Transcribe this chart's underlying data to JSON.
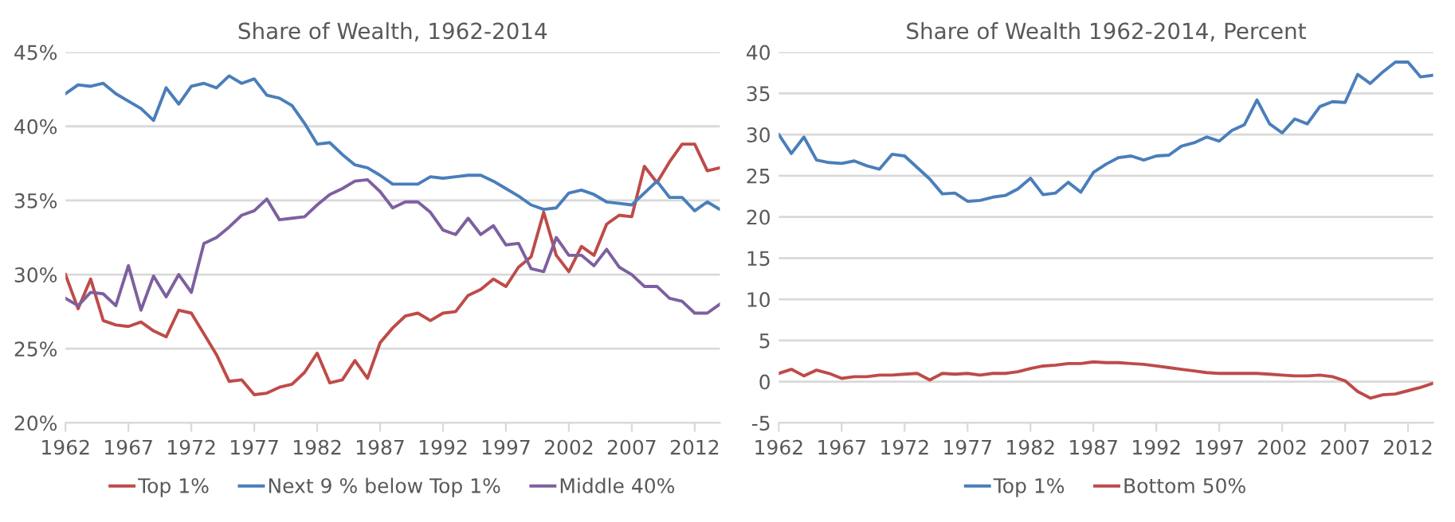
{
  "chart_data": [
    {
      "type": "line",
      "title": "Share of Wealth, 1962-2014",
      "x": [
        1962,
        1963,
        1964,
        1965,
        1966,
        1967,
        1968,
        1969,
        1970,
        1971,
        1972,
        1973,
        1974,
        1975,
        1976,
        1977,
        1978,
        1979,
        1980,
        1981,
        1982,
        1983,
        1984,
        1985,
        1986,
        1987,
        1988,
        1989,
        1990,
        1991,
        1992,
        1993,
        1994,
        1995,
        1996,
        1997,
        1998,
        1999,
        2000,
        2001,
        2002,
        2003,
        2004,
        2005,
        2006,
        2007,
        2008,
        2009,
        2010,
        2011,
        2012,
        2013,
        2014
      ],
      "series": [
        {
          "name": "Top 1%",
          "color": "#be4b48",
          "values": [
            30.0,
            27.7,
            29.7,
            26.9,
            26.6,
            26.5,
            26.8,
            26.2,
            25.8,
            27.6,
            27.4,
            26.0,
            24.6,
            22.8,
            22.9,
            21.9,
            22.0,
            22.4,
            22.6,
            23.4,
            24.7,
            22.7,
            22.9,
            24.2,
            23.0,
            25.4,
            26.4,
            27.2,
            27.4,
            26.9,
            27.4,
            27.5,
            28.6,
            29.0,
            29.7,
            29.2,
            30.5,
            31.2,
            34.2,
            31.3,
            30.2,
            31.9,
            31.3,
            33.4,
            34.0,
            33.9,
            37.3,
            36.2,
            37.6,
            38.8,
            38.8,
            37.0,
            37.2
          ]
        },
        {
          "name": "Next 9 % below Top 1%",
          "color": "#4a7ebb",
          "values": [
            42.2,
            42.8,
            42.7,
            42.9,
            42.2,
            41.7,
            41.2,
            40.4,
            42.6,
            41.5,
            42.7,
            42.9,
            42.6,
            43.4,
            42.9,
            43.2,
            42.1,
            41.9,
            41.4,
            40.2,
            38.8,
            38.9,
            38.1,
            37.4,
            37.2,
            36.7,
            36.1,
            36.1,
            36.1,
            36.6,
            36.5,
            36.6,
            36.7,
            36.7,
            36.3,
            35.8,
            35.3,
            34.7,
            34.4,
            34.5,
            35.5,
            35.7,
            35.4,
            34.9,
            34.8,
            34.7,
            35.5,
            36.3,
            35.2,
            35.2,
            34.3,
            34.9,
            34.4
          ]
        },
        {
          "name": "Middle 40%",
          "color": "#7d60a0",
          "values": [
            28.4,
            27.9,
            28.8,
            28.7,
            27.9,
            30.6,
            27.6,
            29.9,
            28.5,
            30.0,
            28.8,
            32.1,
            32.5,
            33.2,
            34.0,
            34.3,
            35.1,
            33.7,
            33.8,
            33.9,
            34.7,
            35.4,
            35.8,
            36.3,
            36.4,
            35.6,
            34.5,
            34.9,
            34.9,
            34.2,
            33.0,
            32.7,
            33.8,
            32.7,
            33.3,
            32.0,
            32.1,
            30.4,
            30.2,
            32.5,
            31.3,
            31.3,
            30.6,
            31.7,
            30.5,
            30.0,
            29.2,
            29.2,
            28.4,
            28.2,
            27.4,
            27.4,
            28.0
          ]
        }
      ],
      "xlim": [
        1962,
        2014
      ],
      "xticks": [
        1962,
        1967,
        1972,
        1977,
        1982,
        1987,
        1992,
        1997,
        2002,
        2007,
        2012
      ],
      "ylim": [
        20,
        45
      ],
      "yticks": [
        {
          "value": 20,
          "label": "20%"
        },
        {
          "value": 25,
          "label": "25%"
        },
        {
          "value": 30,
          "label": "30%"
        },
        {
          "value": 35,
          "label": "35%"
        },
        {
          "value": 40,
          "label": "40%"
        },
        {
          "value": 45,
          "label": "45%"
        }
      ],
      "grid": "y",
      "legend": "bottom",
      "marker": "none",
      "line_style": "solid"
    },
    {
      "type": "line",
      "title": "Share of Wealth 1962-2014, Percent",
      "x": [
        1962,
        1963,
        1964,
        1965,
        1966,
        1967,
        1968,
        1969,
        1970,
        1971,
        1972,
        1973,
        1974,
        1975,
        1976,
        1977,
        1978,
        1979,
        1980,
        1981,
        1982,
        1983,
        1984,
        1985,
        1986,
        1987,
        1988,
        1989,
        1990,
        1991,
        1992,
        1993,
        1994,
        1995,
        1996,
        1997,
        1998,
        1999,
        2000,
        2001,
        2002,
        2003,
        2004,
        2005,
        2006,
        2007,
        2008,
        2009,
        2010,
        2011,
        2012,
        2013,
        2014
      ],
      "series": [
        {
          "name": "Top 1%",
          "color": "#4a7ebb",
          "values": [
            30.0,
            27.7,
            29.7,
            26.9,
            26.6,
            26.5,
            26.8,
            26.2,
            25.8,
            27.6,
            27.4,
            26.0,
            24.6,
            22.8,
            22.9,
            21.9,
            22.0,
            22.4,
            22.6,
            23.4,
            24.7,
            22.7,
            22.9,
            24.2,
            23.0,
            25.4,
            26.4,
            27.2,
            27.4,
            26.9,
            27.4,
            27.5,
            28.6,
            29.0,
            29.7,
            29.2,
            30.5,
            31.2,
            34.2,
            31.3,
            30.2,
            31.9,
            31.3,
            33.4,
            34.0,
            33.9,
            37.3,
            36.2,
            37.6,
            38.8,
            38.8,
            37.0,
            37.2
          ]
        },
        {
          "name": "Bottom 50%",
          "color": "#be4b48",
          "values": [
            1.0,
            1.5,
            0.7,
            1.4,
            1.0,
            0.4,
            0.6,
            0.6,
            0.8,
            0.8,
            0.9,
            1.0,
            0.2,
            1.0,
            0.9,
            1.0,
            0.8,
            1.0,
            1.0,
            1.2,
            1.6,
            1.9,
            2.0,
            2.2,
            2.2,
            2.4,
            2.3,
            2.3,
            2.2,
            2.1,
            1.9,
            1.7,
            1.5,
            1.3,
            1.1,
            1.0,
            1.0,
            1.0,
            1.0,
            0.9,
            0.8,
            0.7,
            0.7,
            0.8,
            0.6,
            0.1,
            -1.2,
            -2.0,
            -1.6,
            -1.5,
            -1.1,
            -0.7,
            -0.2
          ]
        }
      ],
      "xlim": [
        1962,
        2014
      ],
      "xticks": [
        1962,
        1967,
        1972,
        1977,
        1982,
        1987,
        1992,
        1997,
        2002,
        2007,
        2012
      ],
      "ylim": [
        -5,
        40
      ],
      "yticks": [
        -5,
        0,
        5,
        10,
        15,
        20,
        25,
        30,
        35,
        40
      ],
      "grid": "y",
      "legend": "bottom",
      "marker": "none",
      "line_style": "solid"
    }
  ]
}
